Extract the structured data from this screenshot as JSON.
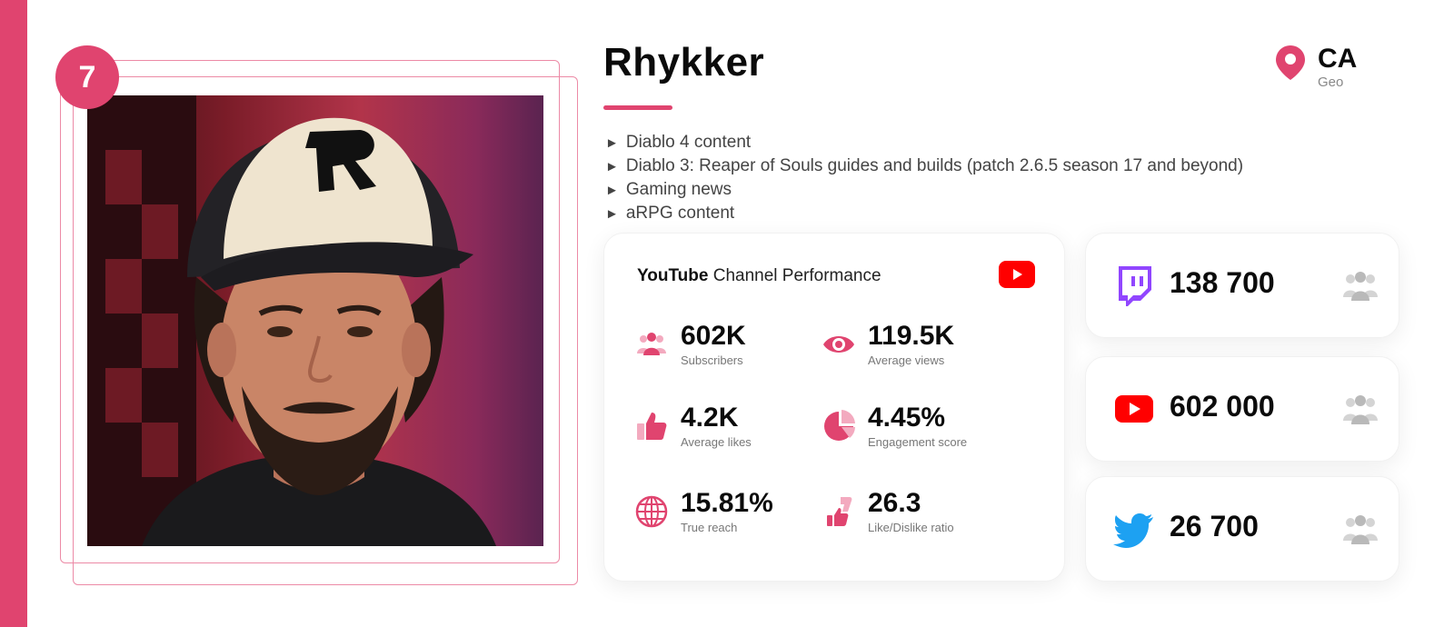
{
  "rank": "7",
  "profile": {
    "name": "Rhykker",
    "geo_code": "CA",
    "geo_label": "Geo"
  },
  "topics": [
    "Diablo 4 content",
    "Diablo 3: Reaper of Souls guides and builds (patch 2.6.5 season 17 and beyond)",
    "Gaming news",
    "aRPG content"
  ],
  "topic_marker": "►",
  "youtube_card": {
    "title_brand": "YouTube",
    "title_rest": " Channel Performance",
    "metrics": [
      {
        "value": "602K",
        "label": "Subscribers",
        "icon": "users-icon"
      },
      {
        "value": "119.5K",
        "label": "Average views",
        "icon": "eye-icon"
      },
      {
        "value": "4.2K",
        "label": "Average likes",
        "icon": "thumbs-up-icon"
      },
      {
        "value": "4.45%",
        "label": "Engagement score",
        "icon": "pie-chart-icon"
      },
      {
        "value": "15.81%",
        "label": "True reach",
        "icon": "globe-icon"
      },
      {
        "value": "26.3",
        "label": "Like/Dislike ratio",
        "icon": "like-dislike-icon"
      }
    ]
  },
  "socials": [
    {
      "platform": "twitch",
      "value": "138 700",
      "icon": "twitch-icon"
    },
    {
      "platform": "youtube",
      "value": "602 000",
      "icon": "youtube-icon"
    },
    {
      "platform": "twitter",
      "value": "26 700",
      "icon": "twitter-icon"
    }
  ],
  "colors": {
    "accent": "#e0446f",
    "twitch": "#9146ff",
    "youtube": "#ff0000",
    "twitter": "#1da1f2",
    "muted_icon": "#b9b9b9"
  }
}
